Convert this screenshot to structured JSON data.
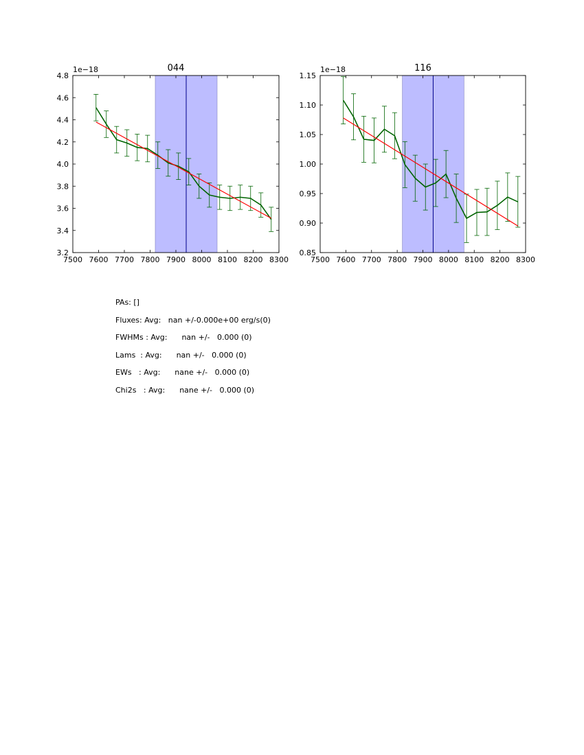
{
  "chart_data": [
    {
      "type": "line",
      "title": "044",
      "offset_label": "1e−18",
      "xlim": [
        7500,
        8300
      ],
      "ylim": [
        3.2,
        4.8
      ],
      "xticks": [
        "7500",
        "7600",
        "7700",
        "7800",
        "7900",
        "8000",
        "8100",
        "8200",
        "8300"
      ],
      "yticks": [
        "3.2",
        "3.4",
        "3.6",
        "3.8",
        "4.0",
        "4.2",
        "4.4",
        "4.6",
        "4.8"
      ],
      "shaded_band": [
        7820,
        8060
      ],
      "vertical_line": 7940,
      "colors": {
        "data": "#006400",
        "fit": "#ff0000",
        "band": "#bdbdff",
        "line": "#00008b"
      },
      "x": [
        7590,
        7630,
        7670,
        7710,
        7750,
        7790,
        7830,
        7870,
        7910,
        7950,
        7990,
        8030,
        8070,
        8110,
        8150,
        8190,
        8230,
        8270
      ],
      "y": [
        4.51,
        4.36,
        4.22,
        4.19,
        4.15,
        4.14,
        4.08,
        4.01,
        3.98,
        3.93,
        3.8,
        3.72,
        3.7,
        3.69,
        3.7,
        3.69,
        3.63,
        3.5
      ],
      "yerr": [
        0.12,
        0.12,
        0.12,
        0.12,
        0.12,
        0.12,
        0.12,
        0.12,
        0.12,
        0.12,
        0.11,
        0.11,
        0.11,
        0.11,
        0.11,
        0.11,
        0.11,
        0.11
      ],
      "fit": {
        "x": [
          7590,
          8270
        ],
        "y": [
          4.38,
          3.51
        ]
      }
    },
    {
      "type": "line",
      "title": "116",
      "offset_label": "1e−18",
      "xlim": [
        7500,
        8300
      ],
      "ylim": [
        0.85,
        1.15
      ],
      "xticks": [
        "7500",
        "7600",
        "7700",
        "7800",
        "7900",
        "8000",
        "8100",
        "8200",
        "8300"
      ],
      "yticks": [
        "0.85",
        "0.90",
        "0.95",
        "1.00",
        "1.05",
        "1.10",
        "1.15"
      ],
      "shaded_band": [
        7820,
        8060
      ],
      "vertical_line": 7940,
      "colors": {
        "data": "#006400",
        "fit": "#ff0000",
        "band": "#bdbdff",
        "line": "#00008b"
      },
      "x": [
        7590,
        7630,
        7670,
        7710,
        7750,
        7790,
        7830,
        7870,
        7910,
        7950,
        7990,
        8030,
        8070,
        8110,
        8150,
        8190,
        8230,
        8270
      ],
      "y": [
        1.108,
        1.08,
        1.042,
        1.04,
        1.059,
        1.048,
        0.999,
        0.976,
        0.961,
        0.968,
        0.983,
        0.942,
        0.908,
        0.918,
        0.919,
        0.93,
        0.944,
        0.936
      ],
      "yerr": [
        0.04,
        0.039,
        0.039,
        0.038,
        0.039,
        0.039,
        0.039,
        0.039,
        0.039,
        0.04,
        0.04,
        0.041,
        0.041,
        0.039,
        0.04,
        0.041,
        0.041,
        0.043
      ],
      "fit": {
        "x": [
          7590,
          8270
        ],
        "y": [
          1.078,
          0.895
        ]
      }
    }
  ],
  "stats": {
    "pas": "PAs: []",
    "fluxes": "Fluxes: Avg:   nan +/-0.000e+00 erg/s(0)",
    "fwhms": "FWHMs : Avg:      nan +/-   0.000 (0)",
    "lams": "Lams  : Avg:      nan +/-   0.000 (0)",
    "ews": "EWs   : Avg:      nane +/-   0.000 (0)",
    "chi2s": "Chi2s   : Avg:      nane +/-   0.000 (0)"
  }
}
